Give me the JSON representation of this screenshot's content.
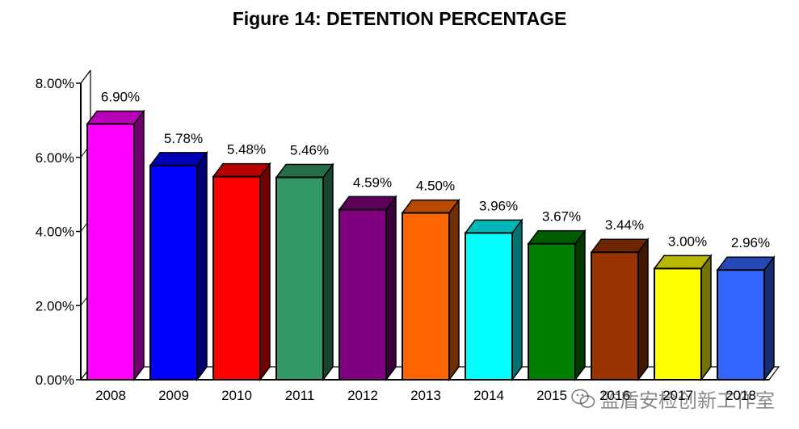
{
  "chart_data": {
    "type": "bar",
    "title": "Figure 14: DETENTION PERCENTAGE",
    "xlabel": "",
    "ylabel": "",
    "categories": [
      "2008",
      "2009",
      "2010",
      "2011",
      "2012",
      "2013",
      "2014",
      "2015",
      "2016",
      "2017",
      "2018"
    ],
    "values": [
      6.9,
      5.78,
      5.48,
      5.46,
      4.59,
      4.5,
      3.96,
      3.67,
      3.44,
      3.0,
      2.96
    ],
    "value_labels": [
      "6.90%",
      "5.78%",
      "5.48%",
      "5.46%",
      "4.59%",
      "4.50%",
      "3.96%",
      "3.67%",
      "3.44%",
      "3.00%",
      "2.96%"
    ],
    "ylim": [
      0,
      8
    ],
    "yticks": [
      0,
      2,
      4,
      6,
      8
    ],
    "ytick_labels": [
      "0.00%",
      "2.00%",
      "4.00%",
      "6.00%",
      "8.00%"
    ],
    "bar_colors": [
      "#ff00ff",
      "#0000ff",
      "#ff0000",
      "#339966",
      "#800080",
      "#ff6600",
      "#00ffff",
      "#008000",
      "#993300",
      "#ffff00",
      "#3366ff"
    ],
    "grid": false,
    "legend": "none",
    "style": "3d-bars"
  },
  "watermark": {
    "text": "监盾安检创新工作室",
    "icon": "wechat-icon"
  }
}
